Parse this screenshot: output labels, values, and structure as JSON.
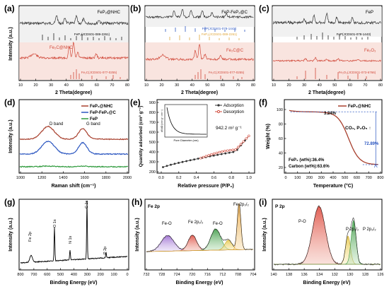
{
  "panels": {
    "a": {
      "label": "(a)",
      "xlabel": "2 Theta(degree)",
      "ylabel": "Intensity (a.u.)",
      "xticks": [
        "10",
        "20",
        "30",
        "40",
        "50",
        "60",
        "70",
        "80"
      ],
      "legend_top": "FeP₂@NHC",
      "legend_bottom": "Fe₂C@NHC",
      "ref_top": "FeP₂(JCDS01-089-2261)",
      "ref_bottom": "Fe₂C(JCDS01-077-0255)",
      "colors": {
        "top": "#333333",
        "bottom": "#d1493a"
      }
    },
    "b": {
      "label": "(b)",
      "xlabel": "2 Theta(degree)",
      "xticks": [
        "10",
        "20",
        "30",
        "40",
        "50",
        "60",
        "70",
        "80"
      ],
      "legend_top": "FeP-FeP₂@C",
      "legend_bottom": "Fe₂C@C",
      "ref_1": "FeP(JCDS01-078-1443)",
      "ref_2": "FeP₂(JCDS01-089-2261)",
      "ref_bottom": "Fe₂C(JCDS01-077-0255)",
      "colors": {
        "top": "#333333",
        "bottom": "#d1493a",
        "ref1": "#2b56c0",
        "ref2": "#e0a63a"
      }
    },
    "c": {
      "label": "(c)",
      "xlabel": "2 Theta(degree)",
      "xticks": [
        "10",
        "20",
        "30",
        "40",
        "50",
        "60",
        "70",
        "80"
      ],
      "legend_top": "FeP",
      "legend_bottom": "Fe₂O₃",
      "ref_top": "FeP(JCDS01-078-1443)",
      "ref_bottom": "Fe₂O₃(JCDS01-073-6766)",
      "colors": {
        "top": "#333333",
        "bottom": "#d1493a"
      }
    },
    "d": {
      "label": "(d)",
      "xlabel": "Raman shift (cm⁻¹)",
      "ylabel": "Intensity (a.u.)",
      "xticks": [
        "1000",
        "1200",
        "1400",
        "1600",
        "1800",
        "2000"
      ],
      "legend": [
        {
          "name": "FeP₂@NHC",
          "color": "#a8402e"
        },
        {
          "name": "FeP-FeP₂@C",
          "color": "#2b56c0"
        },
        {
          "name": "FeP",
          "color": "#2e9a3c"
        }
      ],
      "annotations": [
        "D band",
        "G band"
      ]
    },
    "e": {
      "label": "(e)",
      "xlabel": "Relative pressure (P/P₀)",
      "ylabel": "Quantity adsorbed (cm³ g⁻¹)",
      "xticks": [
        "0.0",
        "0.2",
        "0.4",
        "0.6",
        "0.8",
        "1.0"
      ],
      "yticks": [
        "200",
        "300",
        "400",
        "500",
        "600",
        "700",
        "800",
        "900"
      ],
      "legend": [
        "Adsorption",
        "Desorption"
      ],
      "surface_area": "942.2 m² g⁻¹",
      "inset_xlabel": "Pore Diameter (nm)",
      "inset_ylabel": "dV/dD (cm³ g⁻¹ nm⁻¹)"
    },
    "f": {
      "label": "(f)",
      "xlabel": "Temperature (°C)",
      "ylabel": "Weight (%)",
      "xticks": [
        "0",
        "100",
        "200",
        "300",
        "400",
        "500",
        "600",
        "700",
        "800"
      ],
      "yticks": [
        "20",
        "40",
        "60",
        "80",
        "100"
      ],
      "legend": "FeP₂@NHC",
      "loss_small": "3.24%",
      "loss_large": "72.89%",
      "gas_label": "CO₂, P₂O₅ ↑",
      "comp_1": "FeP₂ (wt%):36.4%",
      "comp_2": "Carbon (wt%):63.6%"
    },
    "g": {
      "label": "(g)",
      "xlabel": "Binding Energy (eV)",
      "ylabel": "Intensity (a.u.)",
      "xticks": [
        "800",
        "700",
        "600",
        "500",
        "400",
        "300",
        "200",
        "100",
        "0"
      ],
      "peaks": [
        "Fe 2p",
        "O 1s",
        "N 1s",
        "C 1s",
        "P 2p"
      ]
    },
    "h": {
      "label": "(h)",
      "title": "Fe 2p",
      "xlabel": "Binding Energy (eV)",
      "ylabel": "Intensity (a.u.)",
      "xticks": [
        "732",
        "728",
        "724",
        "720",
        "716",
        "712",
        "708",
        "704"
      ],
      "peaks": [
        "Fe-O",
        "Fe 2p₁/₂",
        "Fe-O",
        "Fe 2p₃/₂"
      ]
    },
    "i": {
      "label": "(i)",
      "title": "P 2p",
      "xlabel": "Binding Energy (eV)",
      "ylabel": "Intensity (a.u.)",
      "xticks": [
        "140",
        "138",
        "136",
        "134",
        "132",
        "130",
        "128",
        "126"
      ],
      "peaks": [
        "P-O",
        "P 2p₁/₂",
        "P 2p₃/₂"
      ]
    }
  }
}
